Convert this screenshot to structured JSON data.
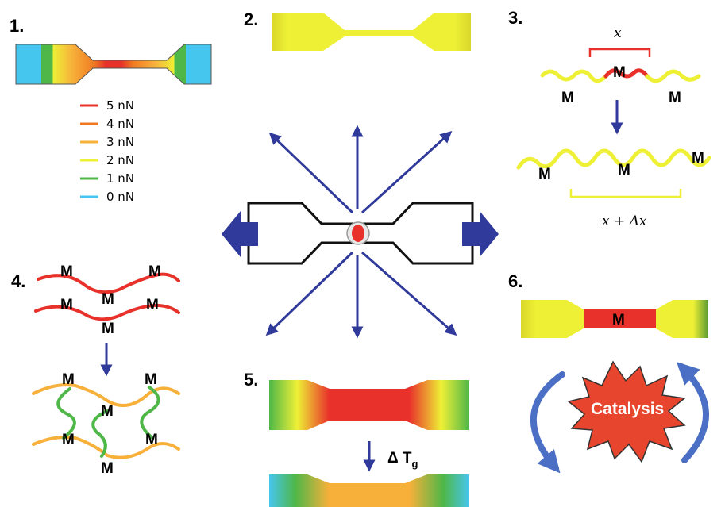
{
  "panels": {
    "p1": "1.",
    "p2": "2.",
    "p3": "3.",
    "p4": "4.",
    "p5": "5.",
    "p6": "6."
  },
  "legend": [
    {
      "label": "5 nN",
      "color": "#e8312a"
    },
    {
      "label": "4 nN",
      "color": "#f07a23"
    },
    {
      "label": "3 nN",
      "color": "#f7b03a"
    },
    {
      "label": "2 nN",
      "color": "#eef036"
    },
    {
      "label": "1 nN",
      "color": "#4fb748"
    },
    {
      "label": "0 nN",
      "color": "#45c6ee"
    }
  ],
  "mechanophore": "M",
  "panel3": {
    "top_length": "x",
    "bottom_length": "x + Δx"
  },
  "panel5": {
    "delta": "Δ T",
    "subscript": "g"
  },
  "panel6": {
    "center_label": "M",
    "burst_label": "Catalysis"
  },
  "colors": {
    "arrow_blue": "#2f3a9a",
    "red": "#e8312a",
    "yellow": "#eef036",
    "orange": "#f7b03a",
    "green": "#4fb748",
    "cyan": "#45c6ee"
  }
}
